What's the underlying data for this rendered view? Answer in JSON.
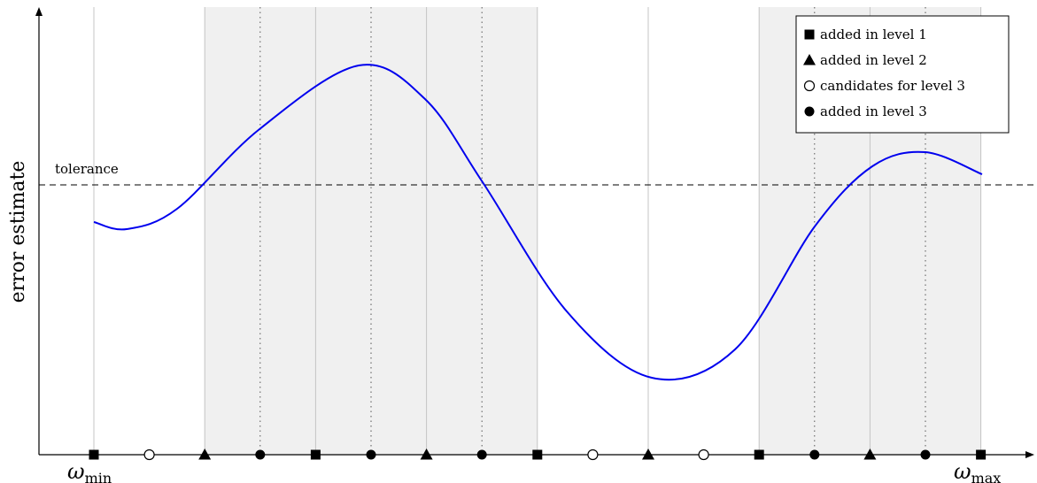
{
  "y_axis_label": "error estimate",
  "tolerance_label": "tolerance",
  "x_axis_labels": {
    "min": {
      "symbol": "ω",
      "subscript": "min"
    },
    "max": {
      "symbol": "ω",
      "subscript": "max"
    }
  },
  "legend": [
    {
      "marker": "square",
      "label": "added in level 1"
    },
    {
      "marker": "triangle",
      "label": "added in level 2"
    },
    {
      "marker": "open-circle",
      "label": "candidates for level 3"
    },
    {
      "marker": "filled-circle",
      "label": "added in level 3"
    }
  ],
  "sample_markers": [
    "square",
    "open-circle",
    "triangle",
    "filled-circle",
    "square",
    "filled-circle",
    "triangle",
    "filled-circle",
    "square",
    "open-circle",
    "triangle",
    "open-circle",
    "square",
    "filled-circle",
    "triangle",
    "filled-circle",
    "square"
  ],
  "shaded_intervals": [
    [
      2,
      8
    ],
    [
      12,
      16
    ]
  ],
  "dotted_lines": [
    3,
    5,
    7,
    13,
    15
  ],
  "curve_color": "#0000ee",
  "shade_color": "#f0f0f0"
}
